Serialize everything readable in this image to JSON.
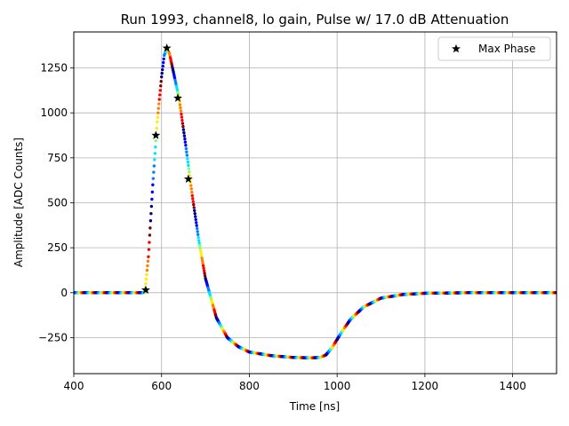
{
  "chart_data": {
    "type": "scatter",
    "title": "Run 1993, channel8, lo gain, Pulse w/ 17.0 dB Attenuation",
    "xlabel": "Time [ns]",
    "ylabel": "Amplitude [ADC Counts]",
    "xlim": [
      400,
      1500
    ],
    "ylim": [
      -450,
      1450
    ],
    "xticks": [
      400,
      600,
      800,
      1000,
      1200,
      1400
    ],
    "yticks": [
      -250,
      0,
      250,
      500,
      750,
      1000,
      1250
    ],
    "xtick_labels": [
      "400",
      "600",
      "800",
      "1000",
      "1200",
      "1400"
    ],
    "ytick_labels": [
      "−250",
      "0",
      "250",
      "500",
      "750",
      "1000",
      "1250"
    ],
    "grid": true,
    "legend": {
      "placement": "top-right",
      "entries": [
        "Max Phase"
      ]
    },
    "colormap": [
      "#00007f",
      "#0000ff",
      "#007fff",
      "#00e5ff",
      "#7fff7f",
      "#ffee00",
      "#ff7f00",
      "#ff0000",
      "#7f0000"
    ],
    "pulse_curve": {
      "x": [
        400,
        562,
        570,
        580,
        590,
        600,
        606,
        612,
        618,
        625,
        640,
        655,
        670,
        685,
        700,
        725,
        750,
        775,
        800,
        850,
        900,
        940,
        962,
        975,
        990,
        1010,
        1030,
        1060,
        1100,
        1150,
        1200,
        1300,
        1500
      ],
      "y": [
        0,
        0,
        200,
        600,
        950,
        1200,
        1320,
        1358,
        1330,
        1250,
        1080,
        820,
        540,
        290,
        80,
        -140,
        -250,
        -300,
        -330,
        -350,
        -360,
        -362,
        -360,
        -345,
        -300,
        -220,
        -150,
        -80,
        -30,
        -10,
        -3,
        0,
        0
      ]
    },
    "series": [
      {
        "name": "Max Phase",
        "marker": "star",
        "color": "#000000",
        "x": [
          564,
          587,
          612,
          637,
          661
        ],
        "y": [
          15,
          875,
          1360,
          1082,
          632
        ]
      }
    ]
  }
}
